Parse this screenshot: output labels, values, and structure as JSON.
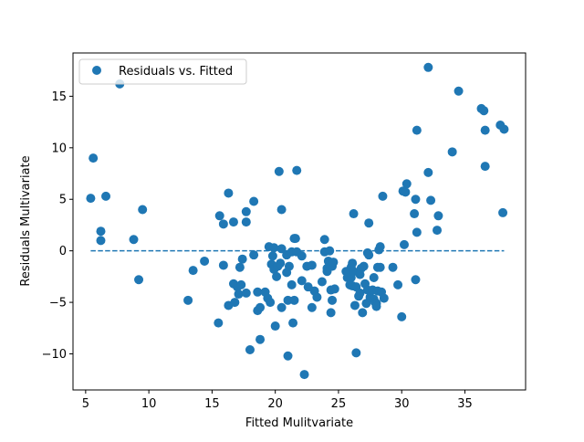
{
  "chart_data": {
    "type": "scatter",
    "xlabel": "Fitted Mulitvariate",
    "ylabel": "Residuals Multivariate",
    "xlim": [
      4.0,
      39.8
    ],
    "ylim": [
      -13.5,
      19.2
    ],
    "xticks": [
      5,
      10,
      15,
      20,
      25,
      30,
      35
    ],
    "yticks": [
      -10,
      -5,
      0,
      5,
      10,
      15
    ],
    "grid": false,
    "legend": {
      "position": "upper-left",
      "entries": [
        "Residuals vs. Fitted"
      ]
    },
    "colors": {
      "points": "#1f77b4",
      "zero_line": "#1f77b4"
    },
    "reference_line": {
      "y": 0,
      "x_range": [
        5.4,
        38.1
      ],
      "style": "dashed"
    },
    "series": [
      {
        "name": "Residuals vs. Fitted",
        "points": [
          [
            5.4,
            5.1
          ],
          [
            5.6,
            9.0
          ],
          [
            6.2,
            1.9
          ],
          [
            6.2,
            1.0
          ],
          [
            6.6,
            5.3
          ],
          [
            7.7,
            16.2
          ],
          [
            8.8,
            1.1
          ],
          [
            9.2,
            -2.8
          ],
          [
            9.5,
            4.0
          ],
          [
            13.1,
            -4.8
          ],
          [
            13.5,
            -1.9
          ],
          [
            14.4,
            -1.0
          ],
          [
            15.5,
            -7.0
          ],
          [
            15.6,
            3.4
          ],
          [
            15.9,
            -1.4
          ],
          [
            15.9,
            2.6
          ],
          [
            16.3,
            5.6
          ],
          [
            16.3,
            -5.3
          ],
          [
            16.7,
            -3.2
          ],
          [
            16.7,
            2.8
          ],
          [
            16.8,
            -5.0
          ],
          [
            17.0,
            -3.5
          ],
          [
            17.1,
            -4.2
          ],
          [
            17.2,
            -1.6
          ],
          [
            17.3,
            -3.3
          ],
          [
            17.4,
            -0.8
          ],
          [
            17.7,
            3.8
          ],
          [
            17.7,
            2.8
          ],
          [
            17.7,
            -4.1
          ],
          [
            18.0,
            -9.6
          ],
          [
            18.3,
            4.8
          ],
          [
            18.3,
            -0.4
          ],
          [
            18.6,
            -5.8
          ],
          [
            18.6,
            -4.0
          ],
          [
            18.8,
            -8.6
          ],
          [
            18.8,
            -5.5
          ],
          [
            19.2,
            -4.0
          ],
          [
            19.4,
            -4.6
          ],
          [
            19.5,
            0.4
          ],
          [
            19.6,
            -5.0
          ],
          [
            19.7,
            -1.3
          ],
          [
            19.8,
            -0.5
          ],
          [
            19.9,
            0.3
          ],
          [
            19.9,
            -1.8
          ],
          [
            20.0,
            -7.3
          ],
          [
            20.1,
            -2.5
          ],
          [
            20.2,
            -1.5
          ],
          [
            20.3,
            7.7
          ],
          [
            20.4,
            -1.2
          ],
          [
            20.5,
            -5.5
          ],
          [
            20.5,
            4.0
          ],
          [
            20.5,
            0.2
          ],
          [
            20.9,
            -0.4
          ],
          [
            20.9,
            -2.1
          ],
          [
            21.0,
            -4.8
          ],
          [
            21.0,
            -10.2
          ],
          [
            21.1,
            -1.5
          ],
          [
            21.3,
            -0.1
          ],
          [
            21.3,
            -3.3
          ],
          [
            21.4,
            -7.0
          ],
          [
            21.5,
            1.2
          ],
          [
            21.5,
            -4.8
          ],
          [
            21.6,
            1.2
          ],
          [
            21.7,
            7.8
          ],
          [
            21.7,
            -0.1
          ],
          [
            22.1,
            -2.9
          ],
          [
            22.1,
            -0.5
          ],
          [
            22.3,
            -12.0
          ],
          [
            22.5,
            -1.5
          ],
          [
            22.6,
            -3.5
          ],
          [
            22.9,
            -5.5
          ],
          [
            22.9,
            -1.4
          ],
          [
            23.1,
            -3.9
          ],
          [
            23.3,
            -4.5
          ],
          [
            23.7,
            -3.0
          ],
          [
            23.9,
            -0.1
          ],
          [
            23.9,
            1.1
          ],
          [
            24.1,
            -1.7
          ],
          [
            24.1,
            -2.0
          ],
          [
            24.2,
            -1.0
          ],
          [
            24.3,
            0.0
          ],
          [
            24.4,
            -3.8
          ],
          [
            24.4,
            -6.0
          ],
          [
            24.5,
            -4.8
          ],
          [
            24.5,
            -1.5
          ],
          [
            24.6,
            -1.1
          ],
          [
            24.7,
            -3.7
          ],
          [
            25.6,
            -2.0
          ],
          [
            25.7,
            -2.6
          ],
          [
            25.9,
            -3.3
          ],
          [
            26.0,
            -1.6
          ],
          [
            26.0,
            -2.6
          ],
          [
            26.1,
            -3.4
          ],
          [
            26.1,
            -1.2
          ],
          [
            26.2,
            3.6
          ],
          [
            26.2,
            -2.0
          ],
          [
            26.3,
            -5.3
          ],
          [
            26.4,
            -3.5
          ],
          [
            26.4,
            -9.9
          ],
          [
            26.6,
            -4.4
          ],
          [
            26.7,
            -4.1
          ],
          [
            26.7,
            -2.3
          ],
          [
            26.8,
            -1.7
          ],
          [
            26.9,
            -6.0
          ],
          [
            27.0,
            -1.5
          ],
          [
            27.1,
            -3.2
          ],
          [
            27.2,
            -5.1
          ],
          [
            27.3,
            -3.8
          ],
          [
            27.3,
            -0.2
          ],
          [
            27.4,
            2.7
          ],
          [
            27.4,
            -0.4
          ],
          [
            27.5,
            -4.5
          ],
          [
            27.6,
            -4.6
          ],
          [
            27.7,
            -3.8
          ],
          [
            27.8,
            -2.6
          ],
          [
            27.8,
            -4.7
          ],
          [
            27.9,
            -5.0
          ],
          [
            28.0,
            -5.1
          ],
          [
            28.0,
            -5.4
          ],
          [
            28.1,
            -1.6
          ],
          [
            28.1,
            -3.9
          ],
          [
            28.2,
            0.1
          ],
          [
            28.3,
            -1.6
          ],
          [
            28.3,
            0.4
          ],
          [
            28.4,
            -4.0
          ],
          [
            28.5,
            5.3
          ],
          [
            28.6,
            -4.6
          ],
          [
            29.3,
            -1.6
          ],
          [
            29.7,
            -3.3
          ],
          [
            30.0,
            -6.4
          ],
          [
            30.1,
            5.8
          ],
          [
            30.2,
            0.6
          ],
          [
            30.3,
            5.7
          ],
          [
            30.4,
            6.5
          ],
          [
            31.0,
            3.6
          ],
          [
            31.1,
            5.0
          ],
          [
            31.1,
            -2.8
          ],
          [
            31.2,
            1.8
          ],
          [
            31.2,
            11.7
          ],
          [
            32.1,
            7.6
          ],
          [
            32.1,
            17.8
          ],
          [
            32.3,
            4.9
          ],
          [
            32.8,
            2.0
          ],
          [
            32.9,
            3.4
          ],
          [
            34.0,
            9.6
          ],
          [
            34.5,
            15.5
          ],
          [
            36.3,
            13.8
          ],
          [
            36.5,
            13.6
          ],
          [
            36.6,
            11.7
          ],
          [
            36.6,
            8.2
          ],
          [
            37.8,
            12.2
          ],
          [
            38.0,
            3.7
          ],
          [
            38.1,
            11.8
          ]
        ]
      }
    ]
  }
}
